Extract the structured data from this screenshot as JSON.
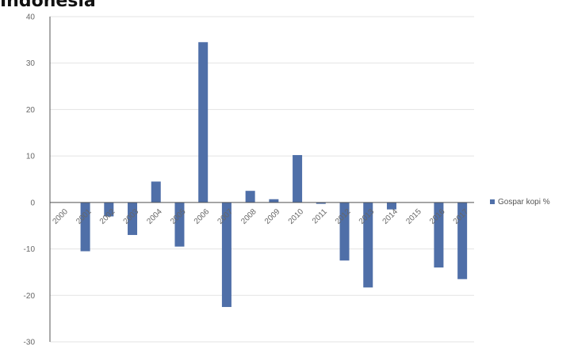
{
  "chart_data": {
    "type": "bar",
    "title": "Indonesia",
    "categories": [
      "2000",
      "2001",
      "2002",
      "2003",
      "2004",
      "2005",
      "2006",
      "2007",
      "2008",
      "2009",
      "2010",
      "2011",
      "2012",
      "2013",
      "2014",
      "2015",
      "2016",
      "2017"
    ],
    "series": [
      {
        "name": "Gospar kopi %",
        "color": "#4f6fa8",
        "values": [
          0,
          -10.5,
          -3,
          -7,
          4.5,
          -9.5,
          34.5,
          -22.5,
          2.5,
          0.7,
          10.2,
          -0.3,
          -12.5,
          -18.3,
          -1.5,
          0,
          -14,
          -16.5
        ]
      }
    ],
    "ylim": [
      -30,
      40
    ],
    "yticks": [
      40,
      30,
      20,
      10,
      0,
      -10,
      -20,
      -30
    ],
    "grid": true,
    "legend": "right"
  }
}
